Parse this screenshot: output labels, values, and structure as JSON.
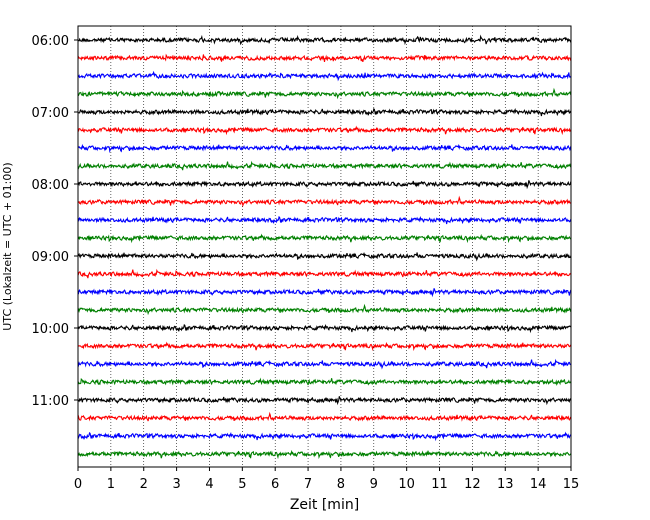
{
  "chart_data": {
    "type": "line",
    "title": "",
    "xlabel": "Zeit  [min]",
    "ylabel": "UTC (Lokalzeit = UTC + 01:00)",
    "xlim": [
      0,
      15
    ],
    "x_ticks": [
      "0",
      "1",
      "2",
      "3",
      "4",
      "5",
      "6",
      "7",
      "8",
      "9",
      "10",
      "11",
      "12",
      "13",
      "14",
      "15"
    ],
    "y_tick_labels": [
      "06:00",
      "07:00",
      "08:00",
      "09:00",
      "10:00",
      "11:00"
    ],
    "y_tick_row_indices": [
      0,
      4,
      8,
      12,
      16,
      20
    ],
    "grid": {
      "x": true,
      "y": false,
      "style": "dotted"
    },
    "trace_start_utc": "06:00",
    "trace_interval_min": 15,
    "trace_count": 24,
    "trace_colors": [
      "#000000",
      "#ff0000",
      "#0000ff",
      "#008000"
    ],
    "traces": [
      {
        "start": "06:00",
        "color": "#000000"
      },
      {
        "start": "06:15",
        "color": "#ff0000"
      },
      {
        "start": "06:30",
        "color": "#0000ff"
      },
      {
        "start": "06:45",
        "color": "#008000"
      },
      {
        "start": "07:00",
        "color": "#000000"
      },
      {
        "start": "07:15",
        "color": "#ff0000"
      },
      {
        "start": "07:30",
        "color": "#0000ff"
      },
      {
        "start": "07:45",
        "color": "#008000"
      },
      {
        "start": "08:00",
        "color": "#000000"
      },
      {
        "start": "08:15",
        "color": "#ff0000"
      },
      {
        "start": "08:30",
        "color": "#0000ff"
      },
      {
        "start": "08:45",
        "color": "#008000"
      },
      {
        "start": "09:00",
        "color": "#000000"
      },
      {
        "start": "09:15",
        "color": "#ff0000"
      },
      {
        "start": "09:30",
        "color": "#0000ff"
      },
      {
        "start": "09:45",
        "color": "#008000"
      },
      {
        "start": "10:00",
        "color": "#000000"
      },
      {
        "start": "10:15",
        "color": "#ff0000"
      },
      {
        "start": "10:30",
        "color": "#0000ff"
      },
      {
        "start": "10:45",
        "color": "#008000"
      },
      {
        "start": "11:00",
        "color": "#000000"
      },
      {
        "start": "11:15",
        "color": "#ff0000"
      },
      {
        "start": "11:30",
        "color": "#0000ff"
      },
      {
        "start": "11:45",
        "color": "#008000"
      }
    ]
  }
}
